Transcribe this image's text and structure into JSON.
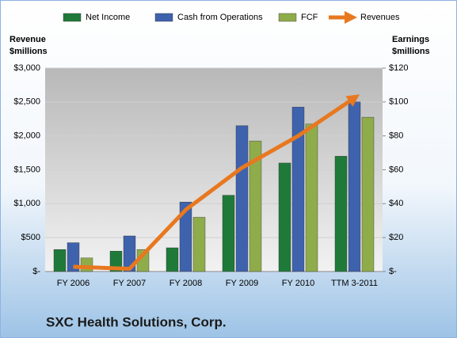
{
  "chart_data": {
    "type": "bar",
    "title": "SXC Health Solutions, Corp.",
    "y_label": [
      "Revenue",
      "$millions"
    ],
    "y2_label": [
      "Earnings",
      "$millions"
    ],
    "categories": [
      "FY 2006",
      "FY 2007",
      "FY 2008",
      "FY 2009",
      "FY 2010",
      "TTM 3-2011"
    ],
    "series": [
      {
        "name": "Net Income",
        "color": "#1f7a3a",
        "axis": "y2",
        "values": [
          13,
          12,
          14,
          45,
          64,
          68
        ]
      },
      {
        "name": "Cash from Operations",
        "color": "#3f62ad",
        "axis": "y2",
        "values": [
          17,
          21,
          41,
          86,
          97,
          100
        ]
      },
      {
        "name": "FCF",
        "color": "#8fac4b",
        "axis": "y2",
        "values": [
          8,
          13,
          32,
          77,
          87,
          91
        ]
      },
      {
        "name": "Revenues",
        "color": "#e8781f",
        "type": "line",
        "values": [
          70,
          40,
          910,
          1530,
          2000,
          2560
        ]
      }
    ],
    "ylim": [
      0,
      3000
    ],
    "yticks": [
      {
        "value": 0,
        "label": "$-"
      },
      {
        "value": 500,
        "label": "$500"
      },
      {
        "value": 1000,
        "label": "$1,000"
      },
      {
        "value": 1500,
        "label": "$1,500"
      },
      {
        "value": 2000,
        "label": "$2,000"
      },
      {
        "value": 2500,
        "label": "$2,500"
      },
      {
        "value": 3000,
        "label": "$3,000"
      }
    ],
    "y2lim": [
      0,
      120
    ],
    "y2ticks": [
      {
        "value": 0,
        "label": "$-"
      },
      {
        "value": 20,
        "label": "$20"
      },
      {
        "value": 40,
        "label": "$40"
      },
      {
        "value": 60,
        "label": "$60"
      },
      {
        "value": 80,
        "label": "$80"
      },
      {
        "value": 100,
        "label": "$100"
      },
      {
        "value": 120,
        "label": "$120"
      }
    ],
    "grid": true,
    "legend": "top"
  }
}
